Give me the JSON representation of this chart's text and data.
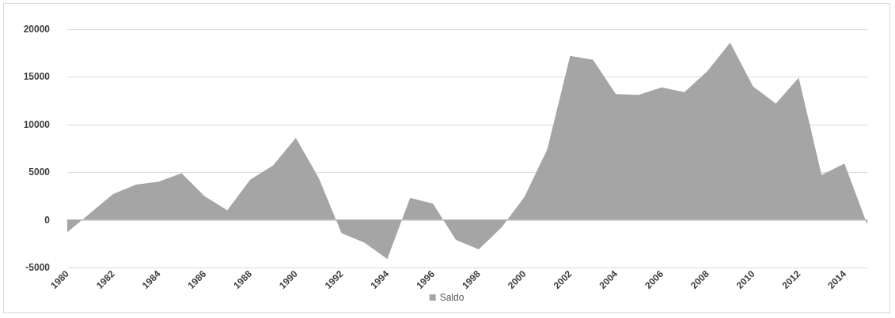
{
  "chart_data": {
    "type": "area",
    "categories": [
      "1980",
      null,
      "1982",
      null,
      "1984",
      null,
      "1986",
      null,
      "1988",
      null,
      "1990",
      null,
      "1992",
      null,
      "1994",
      null,
      "1996",
      null,
      "1998",
      null,
      "2000",
      null,
      "2002",
      null,
      "2004",
      null,
      "2006",
      null,
      "2008",
      null,
      "2010",
      null,
      "2012",
      null,
      "2014",
      null
    ],
    "series": [
      {
        "name": "Saldo",
        "color": "#a5a5a5",
        "values": [
          -1300,
          700,
          2700,
          3700,
          4000,
          4900,
          2500,
          1000,
          4200,
          5700,
          8600,
          4400,
          -1400,
          -2400,
          -4100,
          2300,
          1700,
          -2100,
          -3100,
          -800,
          2400,
          7400,
          17200,
          16800,
          13200,
          13100,
          13900,
          13400,
          15600,
          18600,
          14000,
          12200,
          14900,
          4700,
          5900,
          -500
        ]
      }
    ],
    "ylim": [
      -5000,
      20000
    ],
    "yticks": [
      -5000,
      0,
      5000,
      10000,
      15000,
      20000
    ],
    "grid": "y",
    "legend": "bottom"
  }
}
